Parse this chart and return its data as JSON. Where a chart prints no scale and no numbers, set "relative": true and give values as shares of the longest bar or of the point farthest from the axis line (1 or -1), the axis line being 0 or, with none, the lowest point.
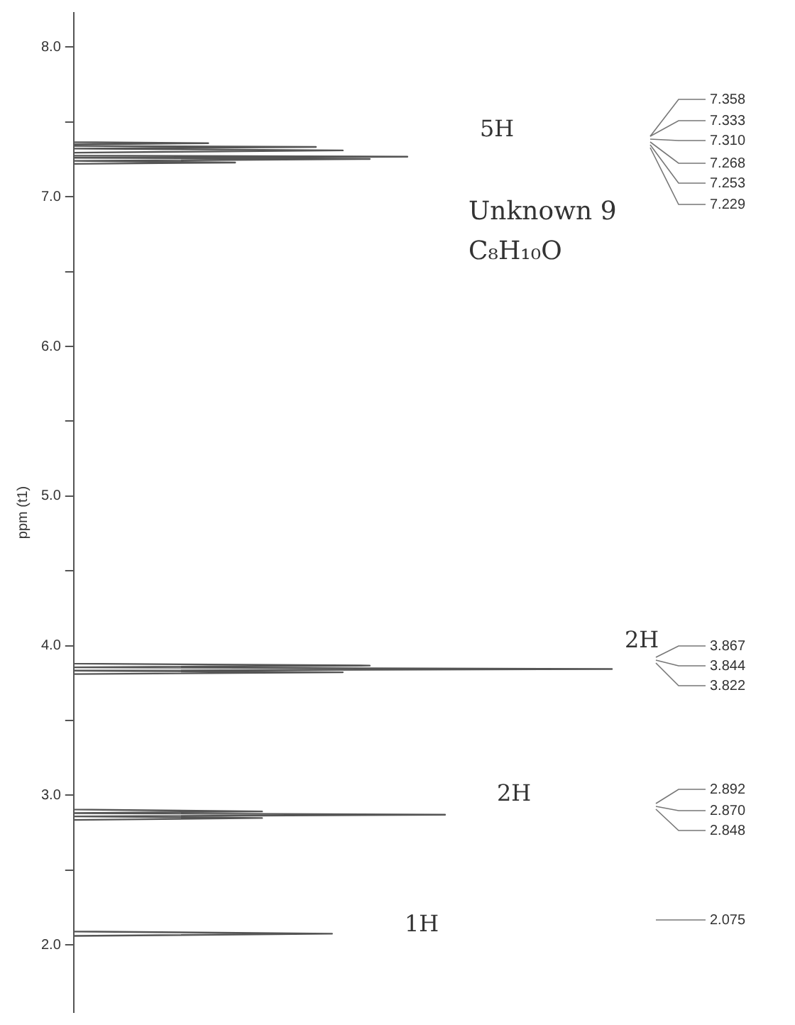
{
  "chart_data": {
    "type": "line",
    "relative": true,
    "orientation": "horizontal",
    "ylabel": "ppm (t1)",
    "ylim": [
      1.55,
      8.23
    ],
    "yticks": [
      {
        "value": 8,
        "label": "8.0"
      },
      {
        "value": 7.5,
        "label": null
      },
      {
        "value": 7,
        "label": "7.0"
      },
      {
        "value": 6.5,
        "label": null
      },
      {
        "value": 6,
        "label": "6.0"
      },
      {
        "value": 5.5,
        "label": null
      },
      {
        "value": 5,
        "label": "5.0"
      },
      {
        "value": 4.5,
        "label": null
      },
      {
        "value": 4,
        "label": "4.0"
      },
      {
        "value": 3.5,
        "label": null
      },
      {
        "value": 3,
        "label": "3.0"
      },
      {
        "value": 2.5,
        "label": null
      },
      {
        "value": 2,
        "label": "2.0"
      }
    ],
    "series": [
      {
        "color": "#555555",
        "x": [
          8.23,
          7.4,
          7.365,
          7.358,
          7.35,
          7.34,
          7.333,
          7.322,
          7.31,
          7.295,
          7.275,
          7.268,
          7.261,
          7.253,
          7.24,
          7.229,
          7.22,
          7.2,
          3.88,
          3.867,
          3.855,
          3.844,
          3.833,
          3.822,
          3.81,
          2.905,
          2.892,
          2.881,
          2.87,
          2.859,
          2.848,
          2.835,
          2.09,
          2.075,
          2.06,
          1.55
        ],
        "values": [
          0,
          0,
          0,
          0.25,
          0,
          0,
          0.45,
          0,
          0.5,
          0,
          0,
          0.62,
          0,
          0.55,
          0,
          0.3,
          0,
          0,
          0,
          0.55,
          0,
          1,
          0,
          0.5,
          0,
          0,
          0.35,
          0,
          0.69,
          0,
          0.35,
          0,
          0,
          0.48,
          0,
          0
        ],
        "name": null
      }
    ],
    "annotations": [
      "Unknown 9",
      "C₈H₁₀O",
      "5H",
      "2H",
      "2H",
      "1H",
      "7.358",
      "7.333",
      "7.310",
      "7.268",
      "7.253",
      "7.229",
      "3.867",
      "3.844",
      "3.822",
      "2.892",
      "2.870",
      "2.848",
      "2.075"
    ],
    "legend": false,
    "grid": false
  }
}
